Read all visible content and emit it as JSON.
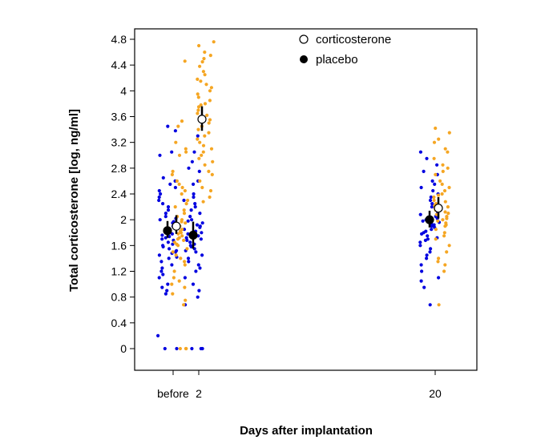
{
  "chart_data": {
    "type": "scatter",
    "xlabel": "Days after implantation",
    "ylabel": "Total corticosterone [log, ng/ml]",
    "x_ticks": [
      "before",
      "2",
      "20"
    ],
    "y_ticks": [
      "0",
      "0.4",
      "0.8",
      "1.2",
      "1.6",
      "2",
      "2.4",
      "2.8",
      "3.2",
      "3.6",
      "4",
      "4.4",
      "4.8"
    ],
    "ylim": [
      -0.3,
      5.0
    ],
    "grid": false,
    "legend_position": "top",
    "legend": [
      {
        "label": "corticosterone",
        "marker": "open-circle"
      },
      {
        "label": "placebo",
        "marker": "filled-circle"
      }
    ],
    "colors": {
      "placebo_points": "#0000e0",
      "corticosterone_points": "#f5a623",
      "mean_marker": "#000000"
    },
    "series": [
      {
        "name": "placebo",
        "means": [
          {
            "x": "before",
            "y": 1.83,
            "ci": [
              1.72,
              1.98
            ]
          },
          {
            "x": "2",
            "y": 1.76,
            "ci": [
              1.55,
              1.97
            ]
          },
          {
            "x": "20",
            "y": 2.0,
            "ci": [
              1.88,
              2.14
            ]
          }
        ],
        "points": {
          "before": [
            3.45,
            3.38,
            3.05,
            3.0,
            2.65,
            2.6,
            2.55,
            2.5,
            2.45,
            2.4,
            2.35,
            2.3,
            2.25,
            2.2,
            2.15,
            2.1,
            2.05,
            2.02,
            2.0,
            1.97,
            1.95,
            1.92,
            1.9,
            1.88,
            1.86,
            1.84,
            1.82,
            1.8,
            1.78,
            1.76,
            1.74,
            1.72,
            1.7,
            1.68,
            1.65,
            1.62,
            1.6,
            1.58,
            1.55,
            1.52,
            1.5,
            1.48,
            1.45,
            1.42,
            1.4,
            1.35,
            1.3,
            1.25,
            1.2,
            1.15,
            1.1,
            1.0,
            0.95,
            0.9,
            0.85,
            0.2,
            0.0,
            0.0
          ],
          "2": [
            3.3,
            3.05,
            2.9,
            2.8,
            2.75,
            2.6,
            2.55,
            2.4,
            2.35,
            2.3,
            2.25,
            2.2,
            2.15,
            2.1,
            2.05,
            2.0,
            1.98,
            1.95,
            1.92,
            1.9,
            1.88,
            1.85,
            1.82,
            1.8,
            1.78,
            1.75,
            1.72,
            1.7,
            1.68,
            1.65,
            1.62,
            1.6,
            1.58,
            1.55,
            1.52,
            1.5,
            1.45,
            1.4,
            1.35,
            1.3,
            1.25,
            1.2,
            1.1,
            1.0,
            0.9,
            0.8,
            0.68,
            0.0,
            0.0,
            0.0
          ],
          "20": [
            3.05,
            2.95,
            2.85,
            2.75,
            2.7,
            2.6,
            2.55,
            2.5,
            2.45,
            2.4,
            2.35,
            2.3,
            2.25,
            2.2,
            2.15,
            2.1,
            2.08,
            2.05,
            2.02,
            2.0,
            1.98,
            1.96,
            1.94,
            1.92,
            1.9,
            1.88,
            1.85,
            1.82,
            1.8,
            1.78,
            1.75,
            1.72,
            1.7,
            1.68,
            1.65,
            1.6,
            1.55,
            1.5,
            1.45,
            1.4,
            1.3,
            1.2,
            1.1,
            1.05,
            0.95,
            0.68
          ]
        }
      },
      {
        "name": "corticosterone",
        "means": [
          {
            "x": "before",
            "y": 1.9,
            "ci": [
              1.78,
              2.07
            ]
          },
          {
            "x": "2",
            "y": 3.56,
            "ci": [
              3.38,
              3.76
            ]
          },
          {
            "x": "20",
            "y": 2.18,
            "ci": [
              2.02,
              2.35
            ]
          }
        ],
        "points": {
          "before": [
            4.46,
            3.53,
            3.45,
            3.2,
            3.1,
            3.05,
            3.0,
            2.75,
            2.7,
            2.6,
            2.55,
            2.5,
            2.45,
            2.4,
            2.3,
            2.25,
            2.2,
            2.15,
            2.1,
            2.05,
            2.0,
            1.97,
            1.95,
            1.92,
            1.9,
            1.88,
            1.85,
            1.82,
            1.8,
            1.78,
            1.75,
            1.72,
            1.7,
            1.68,
            1.65,
            1.62,
            1.6,
            1.55,
            1.5,
            1.45,
            1.4,
            1.35,
            1.3,
            1.2,
            1.1,
            1.05,
            1.0,
            0.95,
            0.85,
            0.75,
            0.68,
            0.0,
            0.0,
            0.0
          ],
          "2": [
            4.76,
            4.7,
            4.6,
            4.55,
            4.5,
            4.45,
            4.38,
            4.3,
            4.25,
            4.18,
            4.15,
            4.1,
            4.05,
            4.0,
            3.95,
            3.9,
            3.85,
            3.8,
            3.78,
            3.75,
            3.7,
            3.65,
            3.62,
            3.58,
            3.55,
            3.5,
            3.45,
            3.4,
            3.35,
            3.3,
            3.25,
            3.2,
            3.15,
            3.1,
            3.05,
            3.0,
            2.95,
            2.9,
            2.85,
            2.75,
            2.7,
            2.6,
            2.5,
            2.45,
            2.35,
            2.28
          ],
          "20": [
            3.42,
            3.35,
            3.25,
            3.2,
            3.1,
            3.05,
            2.95,
            2.85,
            2.8,
            2.75,
            2.7,
            2.6,
            2.55,
            2.5,
            2.45,
            2.4,
            2.38,
            2.35,
            2.3,
            2.28,
            2.25,
            2.22,
            2.2,
            2.18,
            2.15,
            2.12,
            2.1,
            2.08,
            2.05,
            2.02,
            2.0,
            1.98,
            1.95,
            1.92,
            1.9,
            1.85,
            1.8,
            1.75,
            1.7,
            1.6,
            1.5,
            1.4,
            1.35,
            1.3,
            1.2,
            0.68
          ]
        }
      }
    ]
  }
}
